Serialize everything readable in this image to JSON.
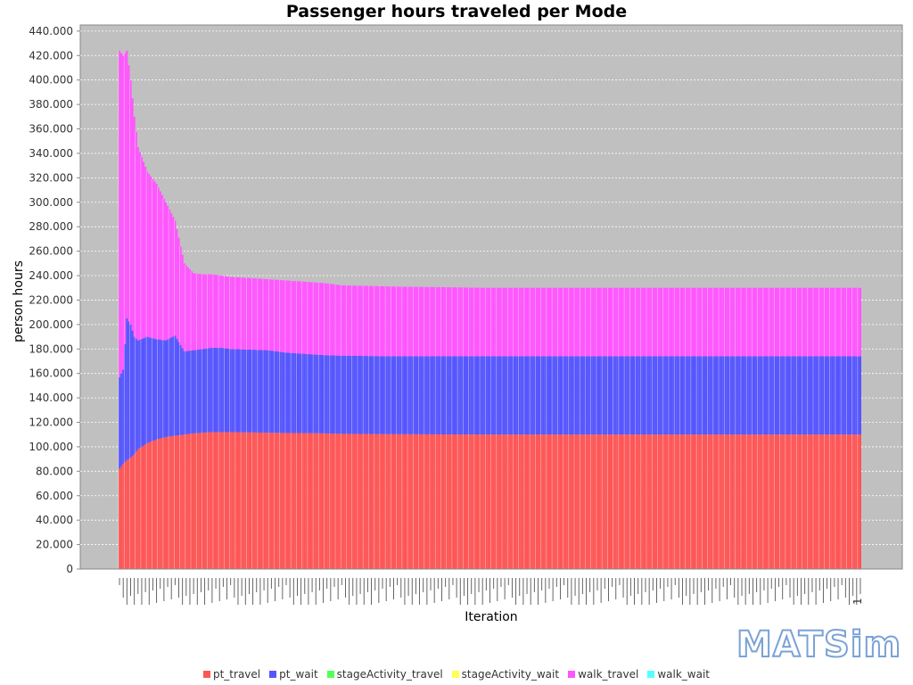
{
  "logo_text": "MATSim",
  "chart_data": {
    "type": "bar",
    "stacked": true,
    "title": "Passenger hours traveled per Mode",
    "xlabel": "Iteration",
    "ylabel": "person hours",
    "ylim": [
      0,
      445000
    ],
    "yticks": [
      0,
      20000,
      40000,
      60000,
      80000,
      100000,
      120000,
      140000,
      160000,
      180000,
      200000,
      220000,
      240000,
      260000,
      280000,
      300000,
      320000,
      340000,
      360000,
      380000,
      400000,
      420000,
      440000
    ],
    "ytick_labels": [
      "0",
      "20.000",
      "40.000",
      "60.000",
      "80.000",
      "100.000",
      "120.000",
      "140.000",
      "160.000",
      "180.000",
      "200.000",
      "220.000",
      "240.000",
      "260.000",
      "280.000",
      "300.000",
      "320.000",
      "340.000",
      "360.000",
      "380.000",
      "400.000",
      "420.000",
      "440.000"
    ],
    "grid": true,
    "legend_position": "bottom",
    "x_visible_tick_label": "1",
    "keyframes": {
      "iteration": [
        0,
        2,
        4,
        6,
        8,
        10,
        15,
        20,
        25,
        30,
        35,
        40,
        45,
        50,
        55,
        60,
        70,
        80,
        90,
        100,
        110,
        120,
        150,
        200,
        250,
        300,
        350,
        400
      ],
      "pt_travel": [
        82000,
        86000,
        89000,
        91000,
        94000,
        98000,
        103000,
        106000,
        108000,
        109000,
        110000,
        111000,
        111500,
        112000,
        112000,
        112000,
        111800,
        111500,
        111300,
        111200,
        111000,
        110600,
        110300,
        110000,
        110000,
        110000,
        110000,
        110000
      ],
      "cumulative_pt_wait": [
        157000,
        163000,
        205000,
        200000,
        190000,
        187000,
        190000,
        188000,
        187000,
        191000,
        178000,
        179000,
        180000,
        181000,
        181000,
        180000,
        179500,
        179000,
        177000,
        176000,
        175000,
        174500,
        174000,
        174000,
        174000,
        174000,
        174000,
        174000
      ],
      "cumulative_walk_travel": [
        424000,
        420000,
        424000,
        400000,
        370000,
        345000,
        325000,
        315000,
        300000,
        285000,
        250000,
        242000,
        241000,
        241000,
        240000,
        239000,
        238000,
        237000,
        236000,
        235000,
        234000,
        232000,
        231000,
        230000,
        230000,
        230000,
        230000,
        230000
      ]
    },
    "n_iterations": 401,
    "series": [
      {
        "name": "pt_travel",
        "color": "#ff5555"
      },
      {
        "name": "pt_wait",
        "color": "#5555ff"
      },
      {
        "name": "stageActivity_travel",
        "color": "#55ff55"
      },
      {
        "name": "stageActivity_wait",
        "color": "#ffff55"
      },
      {
        "name": "walk_travel",
        "color": "#ff55ff"
      },
      {
        "name": "walk_wait",
        "color": "#55ffff"
      }
    ]
  }
}
